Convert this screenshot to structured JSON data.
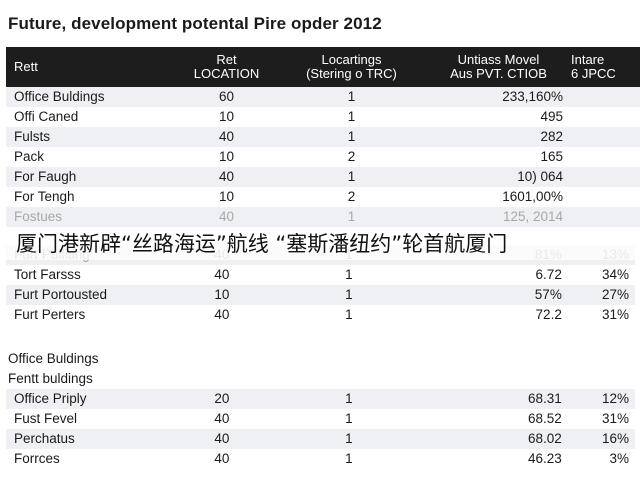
{
  "title": "Future, development potental Pire opder 2012",
  "header": {
    "col1": "Rett",
    "col2_l1": "Ret",
    "col2_l2": "LOCATION",
    "col3_l1": "Locartings",
    "col3_l2": "(Stering o TRC)",
    "col4_l1": "Untiass Movel",
    "col4_l2": "Aus PVT. CTIOB",
    "col5_l1": "Intare",
    "col5_l2": "6 JPCC"
  },
  "table1": [
    {
      "name": "Office Buldings",
      "loc": "60",
      "count": "1",
      "val": "233,160%",
      "pct": ""
    },
    {
      "name": "Offi Caned",
      "loc": "10",
      "count": "1",
      "val": "495",
      "pct": ""
    },
    {
      "name": "Fulsts",
      "loc": "40",
      "count": "1",
      "val": "282",
      "pct": ""
    },
    {
      "name": "Pack",
      "loc": "10",
      "count": "2",
      "val": "165",
      "pct": ""
    },
    {
      "name": "For Faugh",
      "loc": "40",
      "count": "1",
      "val": "10) 064",
      "pct": ""
    },
    {
      "name": "For Tengh",
      "loc": "10",
      "count": "2",
      "val": "1601,00%",
      "pct": ""
    },
    {
      "name": "Fostues",
      "loc": "40",
      "count": "1",
      "val": "125, 2014",
      "pct": ""
    }
  ],
  "overlay_text": "厦门港新辟“丝路海运”航线 “塞斯潘纽约”轮首航厦门",
  "table2": [
    {
      "name": "Furt Pulfiting",
      "loc": "40",
      "count": "1",
      "val": "81%",
      "pct": "13%"
    },
    {
      "name": "Tort Farsss",
      "loc": "40",
      "count": "1",
      "val": "6.72",
      "pct": "34%"
    },
    {
      "name": "Furt Portousted",
      "loc": "10",
      "count": "1",
      "val": "57%",
      "pct": "27%"
    },
    {
      "name": "Furt Perters",
      "loc": "40",
      "count": "1",
      "val": "72.2",
      "pct": "31%"
    }
  ],
  "section1": "Office Buldings",
  "section2": "Fentt buldings",
  "table3": [
    {
      "name": "Office Priply",
      "loc": "20",
      "count": "1",
      "val": "68.31",
      "pct": "12%"
    },
    {
      "name": "Fust Fevel",
      "loc": "40",
      "count": "1",
      "val": "68.52",
      "pct": "31%"
    },
    {
      "name": "Perchatus",
      "loc": "40",
      "count": "1",
      "val": "68.02",
      "pct": "16%"
    },
    {
      "name": "Forrces",
      "loc": "40",
      "count": "1",
      "val": "46.23",
      "pct": "3%"
    }
  ]
}
